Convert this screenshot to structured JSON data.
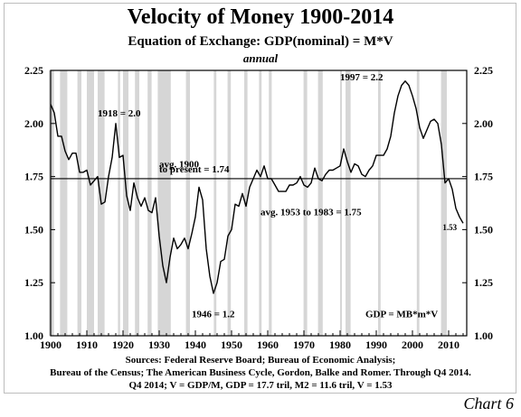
{
  "chart_data": {
    "type": "line",
    "title": "Velocity of Money 1900-2014",
    "subtitle": "Equation of Exchange: GDP(nominal) = M*V",
    "subtitle2": "annual",
    "xlim": [
      1900,
      2015
    ],
    "ylim": [
      1.0,
      2.25
    ],
    "x_ticks": [
      1900,
      1910,
      1920,
      1930,
      1940,
      1950,
      1960,
      1970,
      1980,
      1990,
      2000,
      2010
    ],
    "y_ticks": [
      "2.25",
      "2.00",
      "1.75",
      "1.50",
      "1.25",
      "1.00"
    ],
    "grid": false,
    "recessions": [
      [
        1899.5,
        1900.9
      ],
      [
        1902.6,
        1904.6
      ],
      [
        1907.4,
        1908.5
      ],
      [
        1910.0,
        1912.0
      ],
      [
        1913.0,
        1914.9
      ],
      [
        1918.6,
        1919.2
      ],
      [
        1920.0,
        1921.5
      ],
      [
        1923.3,
        1924.5
      ],
      [
        1926.8,
        1927.9
      ],
      [
        1929.6,
        1933.2
      ],
      [
        1937.4,
        1938.5
      ],
      [
        1945.1,
        1945.8
      ],
      [
        1948.9,
        1949.8
      ],
      [
        1953.5,
        1954.4
      ],
      [
        1957.6,
        1958.3
      ],
      [
        1960.3,
        1961.1
      ],
      [
        1969.9,
        1970.9
      ],
      [
        1973.9,
        1975.2
      ],
      [
        1980.0,
        1980.5
      ],
      [
        1981.5,
        1982.9
      ],
      [
        1990.5,
        1991.2
      ],
      [
        2001.2,
        2001.9
      ],
      [
        2007.9,
        2009.5
      ]
    ],
    "series": [
      {
        "x": [
          1900,
          1901,
          1902,
          1903,
          1904,
          1905,
          1906,
          1907,
          1908,
          1909,
          1910,
          1911,
          1912,
          1913,
          1914,
          1915,
          1916,
          1917,
          1918,
          1919,
          1920,
          1921,
          1922,
          1923,
          1924,
          1925,
          1926,
          1927,
          1928,
          1929,
          1930,
          1931,
          1932,
          1933,
          1934,
          1935,
          1936,
          1937,
          1938,
          1939,
          1940,
          1941,
          1942,
          1943,
          1944,
          1945,
          1946,
          1947,
          1948,
          1949,
          1950,
          1951,
          1952,
          1953,
          1954,
          1955,
          1956,
          1957,
          1958,
          1959,
          1960,
          1961,
          1962,
          1963,
          1964,
          1965,
          1966,
          1967,
          1968,
          1969,
          1970,
          1971,
          1972,
          1973,
          1974,
          1975,
          1976,
          1977,
          1978,
          1979,
          1980,
          1981,
          1982,
          1983,
          1984,
          1985,
          1986,
          1987,
          1988,
          1989,
          1990,
          1991,
          1992,
          1993,
          1994,
          1995,
          1996,
          1997,
          1998,
          1999,
          2000,
          2001,
          2002,
          2003,
          2004,
          2005,
          2006,
          2007,
          2008,
          2009,
          2010,
          2011,
          2012,
          2013,
          2014
        ],
        "values": [
          2.09,
          2.05,
          1.94,
          1.94,
          1.87,
          1.83,
          1.86,
          1.86,
          1.77,
          1.77,
          1.78,
          1.71,
          1.73,
          1.75,
          1.62,
          1.63,
          1.75,
          1.84,
          2.0,
          1.84,
          1.85,
          1.66,
          1.59,
          1.72,
          1.65,
          1.61,
          1.65,
          1.59,
          1.58,
          1.65,
          1.47,
          1.33,
          1.25,
          1.37,
          1.46,
          1.41,
          1.43,
          1.46,
          1.41,
          1.48,
          1.56,
          1.7,
          1.64,
          1.41,
          1.28,
          1.2,
          1.25,
          1.35,
          1.36,
          1.47,
          1.5,
          1.62,
          1.61,
          1.67,
          1.61,
          1.7,
          1.74,
          1.78,
          1.75,
          1.8,
          1.74,
          1.74,
          1.71,
          1.68,
          1.68,
          1.68,
          1.71,
          1.71,
          1.72,
          1.75,
          1.71,
          1.7,
          1.72,
          1.79,
          1.74,
          1.73,
          1.76,
          1.78,
          1.78,
          1.79,
          1.8,
          1.88,
          1.82,
          1.77,
          1.81,
          1.8,
          1.76,
          1.75,
          1.78,
          1.8,
          1.85,
          1.85,
          1.85,
          1.88,
          1.94,
          2.05,
          2.13,
          2.18,
          2.2,
          2.18,
          2.13,
          2.07,
          1.98,
          1.93,
          1.97,
          2.01,
          2.02,
          2.0,
          1.9,
          1.72,
          1.74,
          1.69,
          1.6,
          1.56,
          1.53
        ]
      }
    ],
    "average_line": 1.74,
    "annotations": [
      {
        "text": "1918 = 2.0"
      },
      {
        "text": "1997 = 2.2"
      },
      {
        "text": "avg. 1900"
      },
      {
        "text": "to present = 1.74"
      },
      {
        "text": "avg. 1953 to 1983 = 1.75"
      },
      {
        "text": "1946 = 1.2"
      },
      {
        "text": "GDP = MB*m*V"
      },
      {
        "text": "1.53"
      }
    ],
    "sources": [
      "Sources: Federal Reserve Board; Bureau of Economic Analysis;",
      "Bureau of the Census; The American Business Cycle, Gordon, Balke and Romer. Through Q4 2014.",
      "Q4 2014; V = GDP/M, GDP = 17.7 tril, M2 = 11.6 tril, V = 1.53"
    ],
    "caption": "Chart 6"
  }
}
